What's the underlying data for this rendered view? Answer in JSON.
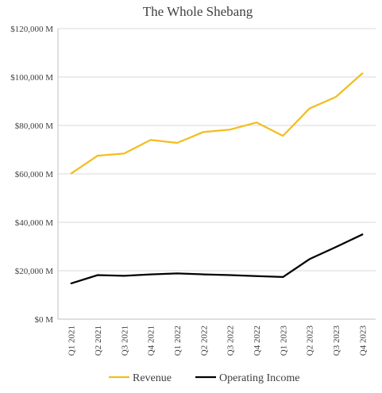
{
  "chart_data": {
    "type": "line",
    "title": "The Whole Shebang",
    "xlabel": "",
    "ylabel": "",
    "categories": [
      "Q1 2021",
      "Q2 2021",
      "Q3 2021",
      "Q4 2021",
      "Q1 2022",
      "Q2 2022",
      "Q3 2022",
      "Q4 2022",
      "Q1 2023",
      "Q2 2023",
      "Q3 2023",
      "Q4 2023"
    ],
    "y_ticks": [
      "$0 M",
      "$20,000 M",
      "$40,000 M",
      "$60,000 M",
      "$80,000 M",
      "$100,000 M",
      "$120,000 M"
    ],
    "ylim": [
      0,
      120000
    ],
    "grid": true,
    "legend_position": "bottom",
    "series": [
      {
        "name": "Revenue",
        "color": "#F2BE1F",
        "values": [
          60200,
          67500,
          68400,
          74000,
          72800,
          77300,
          78300,
          81200,
          75700,
          87000,
          91800,
          101500
        ]
      },
      {
        "name": "Operating Income",
        "color": "#000000",
        "values": [
          14800,
          18200,
          17900,
          18500,
          18900,
          18500,
          18200,
          17800,
          17400,
          24800,
          29800,
          35000
        ]
      }
    ]
  }
}
